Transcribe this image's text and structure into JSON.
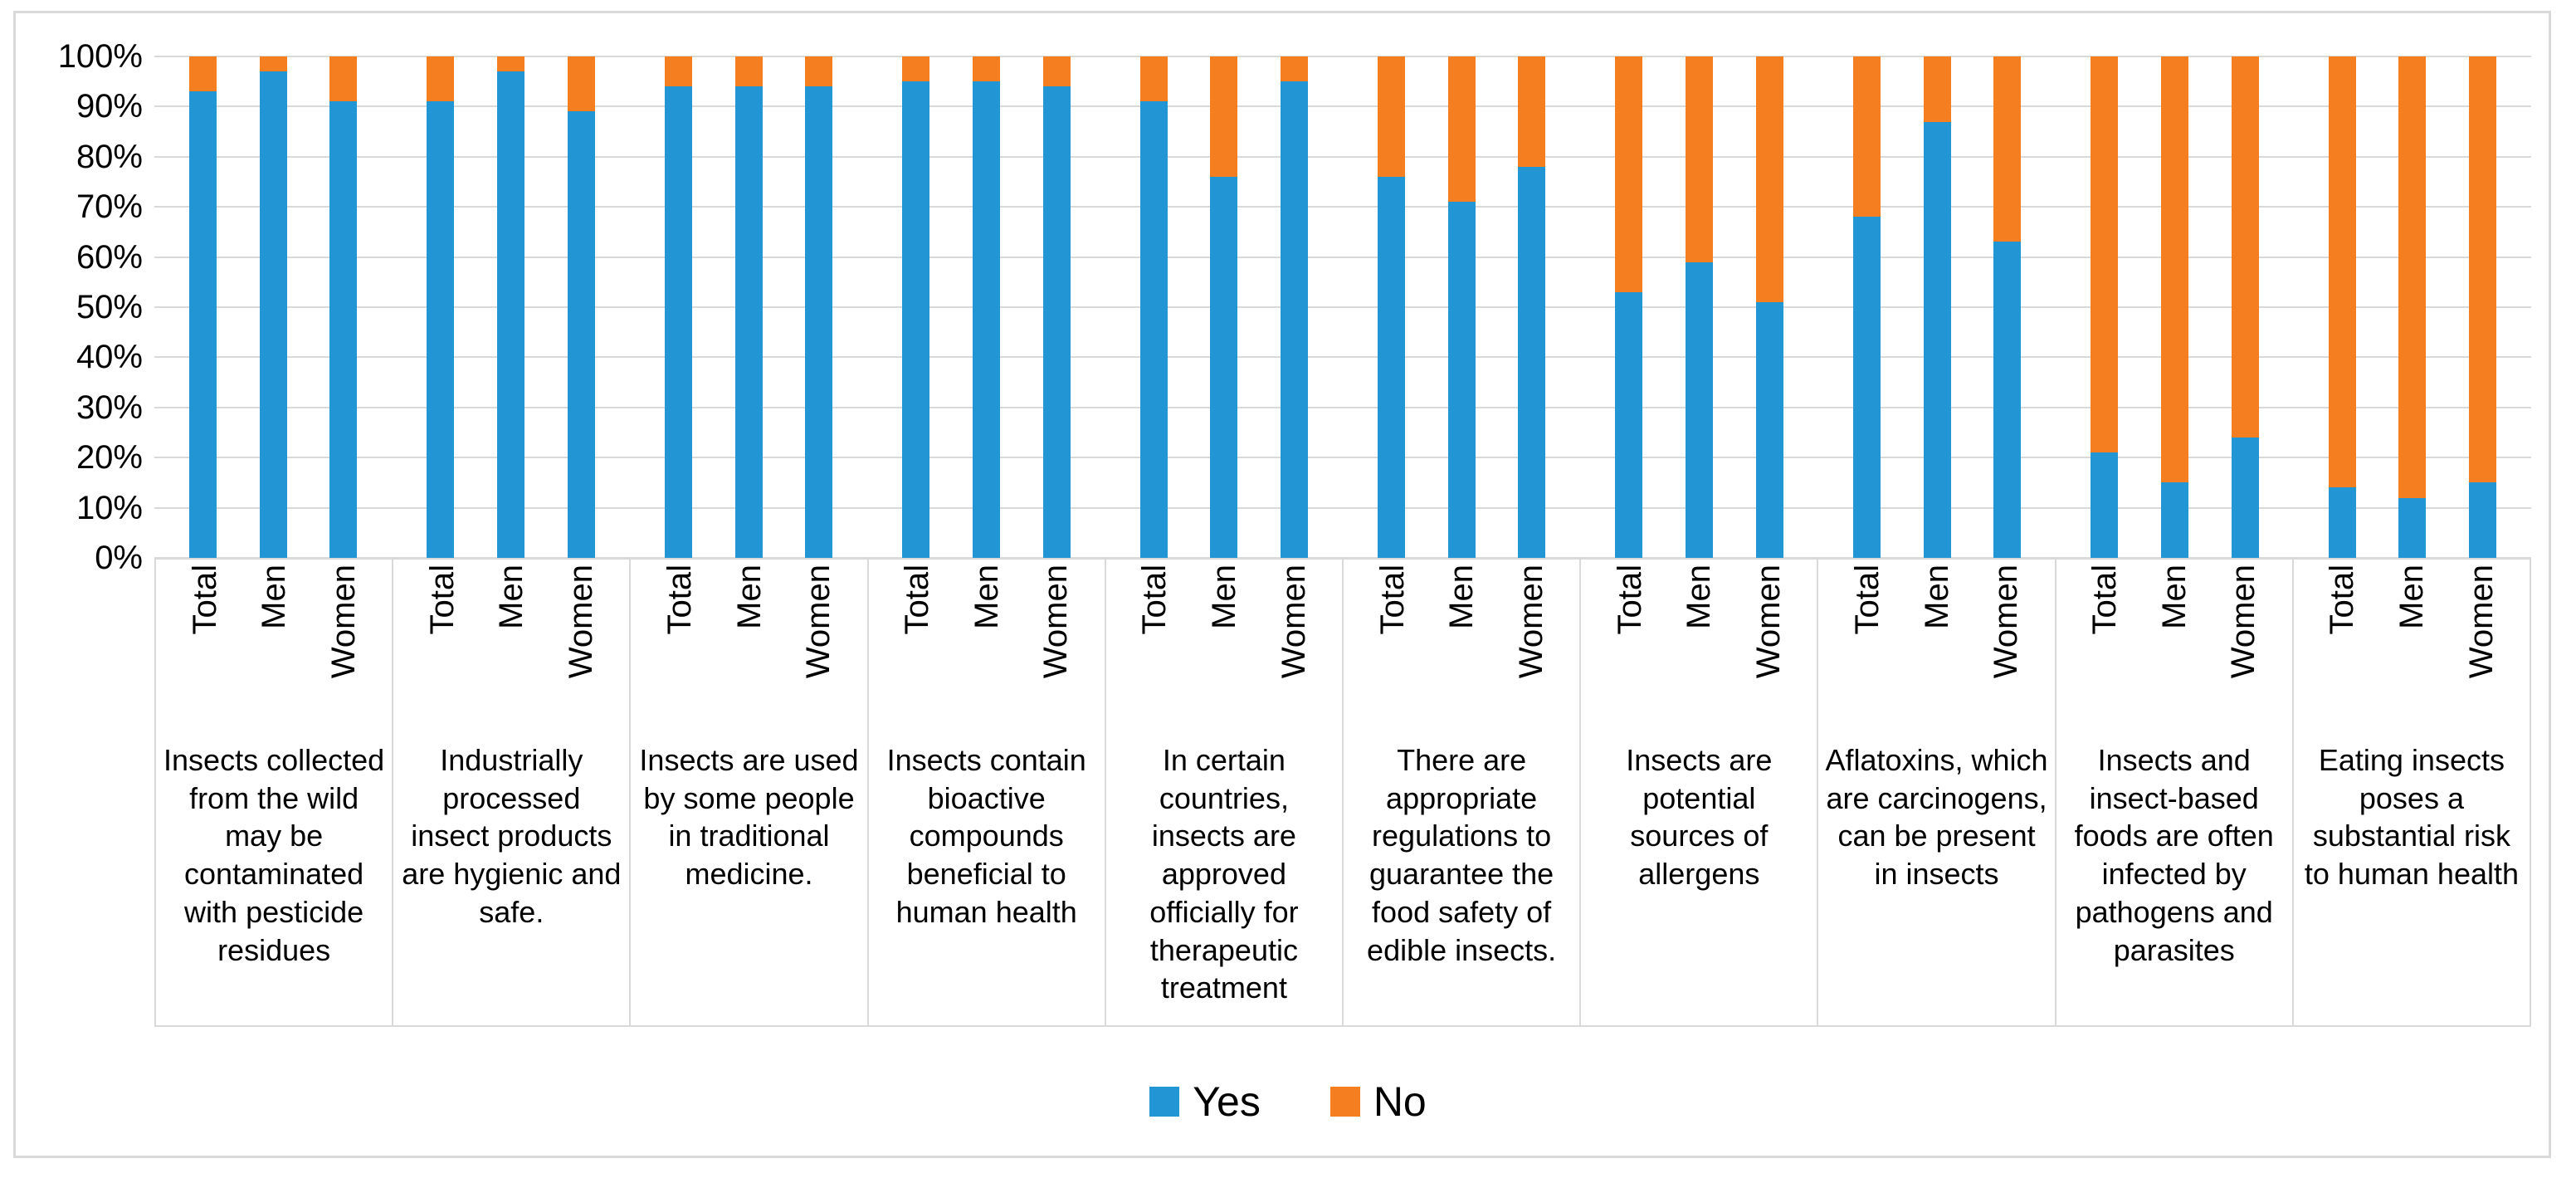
{
  "figure": {
    "background": "#ffffff",
    "border_color": "#d9d9d9",
    "gridline_color": "#d9d9d9"
  },
  "legend": {
    "items": [
      {
        "label": "Yes",
        "color": "#2296d4"
      },
      {
        "label": "No",
        "color": "#f57e20"
      }
    ]
  },
  "yaxis": {
    "ticks": [
      "0%",
      "10%",
      "20%",
      "30%",
      "40%",
      "50%",
      "60%",
      "70%",
      "80%",
      "90%",
      "100%"
    ]
  },
  "xaxis": {
    "subcategories": [
      "Total",
      "Men",
      "Women"
    ]
  },
  "chart_data": {
    "type": "bar",
    "stacked": true,
    "unit": "percent",
    "ylim": [
      0,
      100
    ],
    "grid": true,
    "legend_position": "bottom",
    "series_names": [
      "Yes",
      "No"
    ],
    "subcategories": [
      "Total",
      "Men",
      "Women"
    ],
    "groups": [
      {
        "statement": "Insects collected from the wild may be contaminated with pesticide residues",
        "yes": [
          93,
          97,
          91
        ],
        "no": [
          7,
          3,
          9
        ]
      },
      {
        "statement": "Industrially processed insect products are hygienic and safe.",
        "yes": [
          91,
          97,
          89
        ],
        "no": [
          9,
          3,
          11
        ]
      },
      {
        "statement": "Insects are used by some people in traditional medicine.",
        "yes": [
          94,
          94,
          94
        ],
        "no": [
          6,
          6,
          6
        ]
      },
      {
        "statement": "Insects contain bioactive compounds beneficial to human health",
        "yes": [
          95,
          95,
          94
        ],
        "no": [
          5,
          5,
          6
        ]
      },
      {
        "statement": "In certain countries, insects are approved officially for therapeutic treatment",
        "yes": [
          91,
          76,
          95
        ],
        "no": [
          9,
          24,
          5
        ]
      },
      {
        "statement": "There are appropriate regulations to guarantee the food safety of edible insects.",
        "yes": [
          76,
          71,
          78
        ],
        "no": [
          24,
          29,
          22
        ]
      },
      {
        "statement": "Insects are potential sources of allergens",
        "yes": [
          53,
          59,
          51
        ],
        "no": [
          47,
          41,
          49
        ]
      },
      {
        "statement": "Aflatoxins, which are carcinogens, can be present in insects",
        "yes": [
          68,
          87,
          63
        ],
        "no": [
          32,
          13,
          37
        ]
      },
      {
        "statement": "Insects and insect-based foods are often infected by pathogens and parasites",
        "yes": [
          21,
          15,
          24
        ],
        "no": [
          79,
          85,
          76
        ]
      },
      {
        "statement": "Eating insects poses a substantial risk to human health",
        "yes": [
          14,
          12,
          15
        ],
        "no": [
          86,
          88,
          85
        ]
      }
    ]
  }
}
